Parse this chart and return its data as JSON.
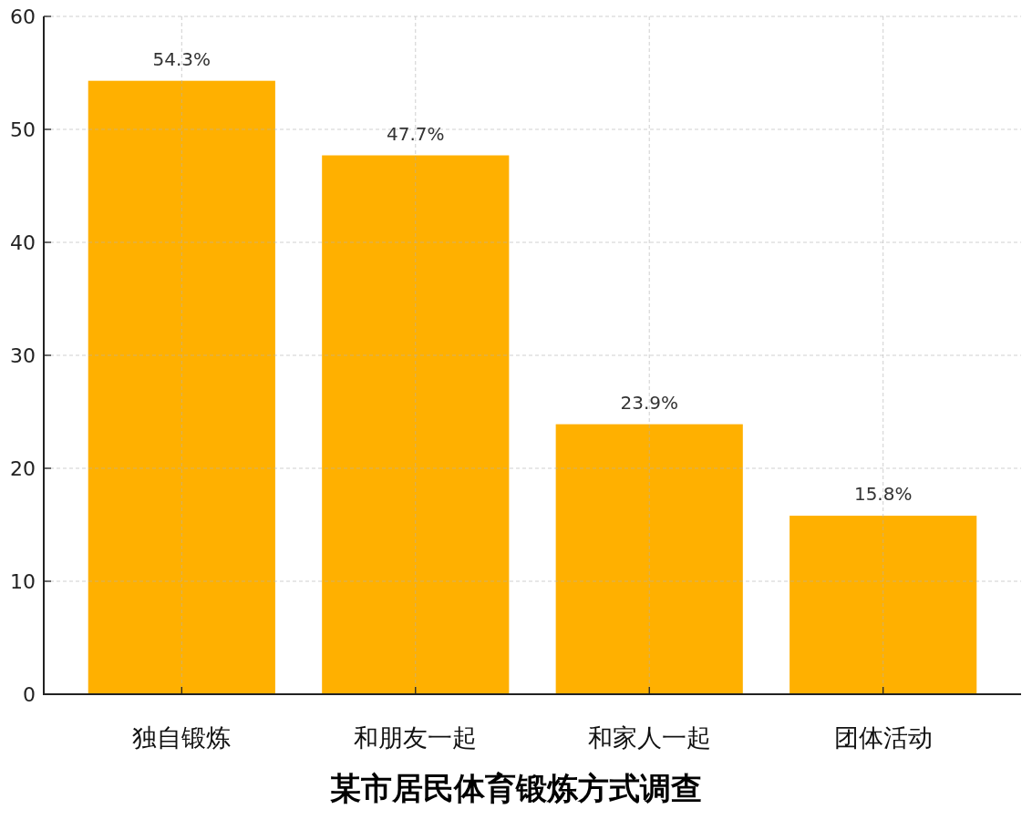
{
  "chart_data": {
    "type": "bar",
    "title": "某市居民体育锻炼方式调查",
    "categories": [
      "独自锻炼",
      "和朋友一起",
      "和家人一起",
      "团体活动"
    ],
    "values": [
      54.3,
      47.7,
      23.9,
      15.8
    ],
    "value_labels": [
      "54.3%",
      "47.7%",
      "23.9%",
      "15.8%"
    ],
    "color": "#ffb000",
    "ylim": [
      0,
      60
    ],
    "yticks": [
      0,
      10,
      20,
      30,
      40,
      50,
      60
    ],
    "grid": true
  }
}
